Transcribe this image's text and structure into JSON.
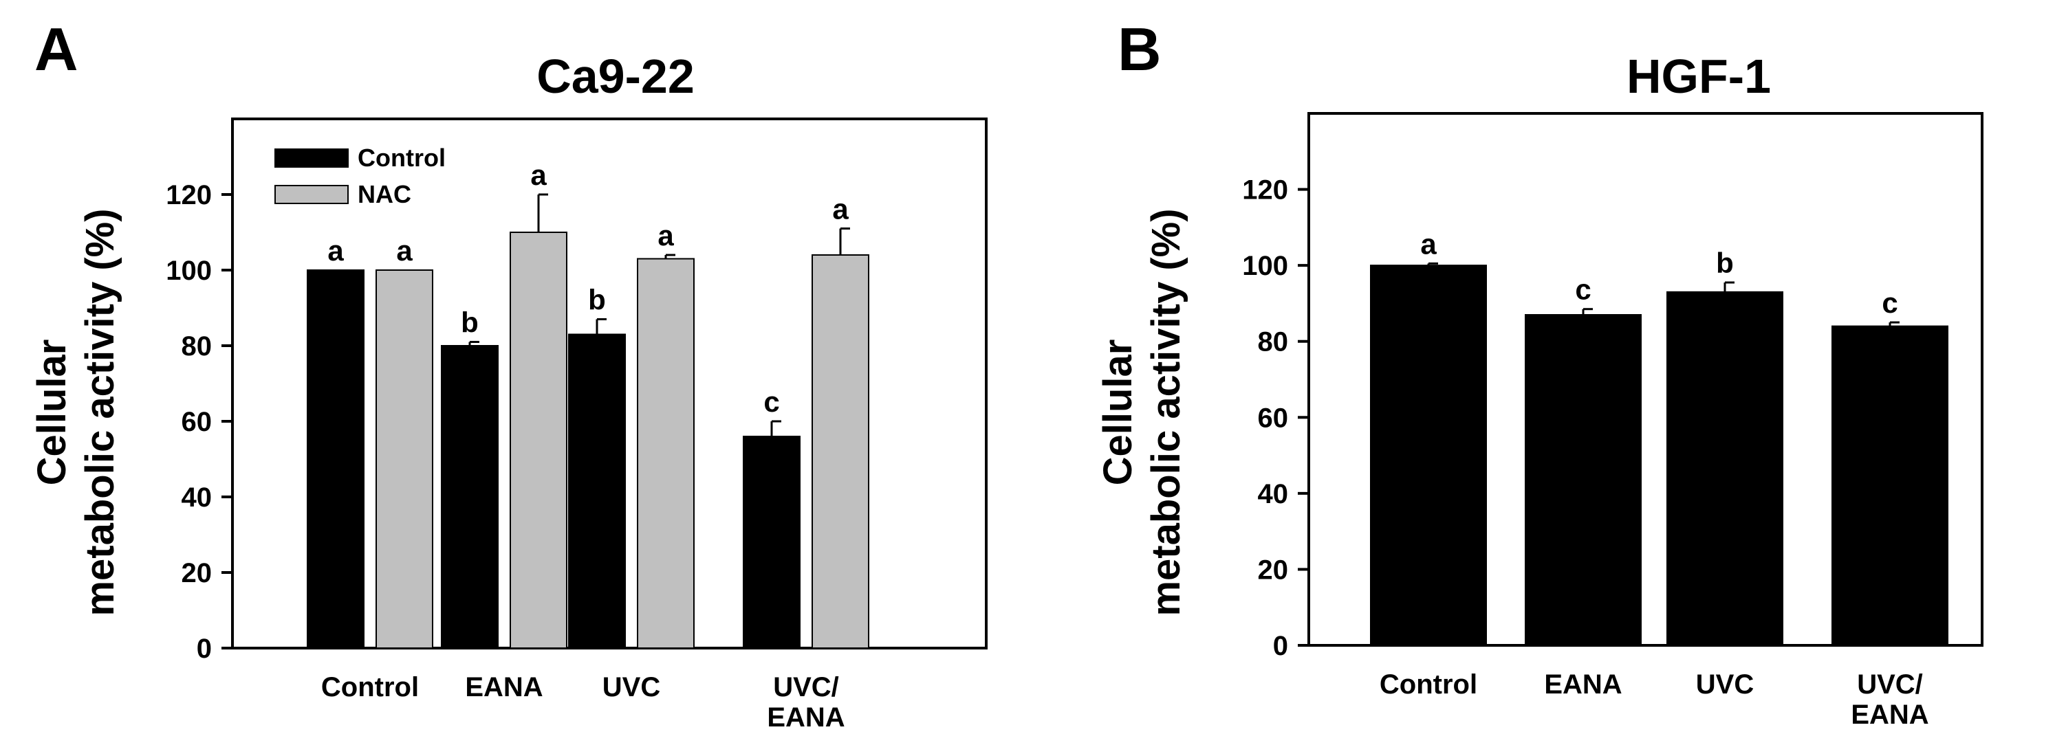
{
  "panel_letters": [
    "A",
    "B"
  ],
  "colors": {
    "control": "#000000",
    "nac": "#c0c0c0",
    "axis": "#000000"
  },
  "chart_data": [
    {
      "type": "bar",
      "panel": "A",
      "title": "Ca9-22",
      "ylabel_lines": [
        "Cellular",
        "metabolic activity (%)"
      ],
      "xlabel": "",
      "ylim": [
        0,
        140
      ],
      "yticks": [
        0,
        20,
        40,
        60,
        80,
        100,
        120
      ],
      "categories": [
        [
          "Control"
        ],
        [
          "EANA"
        ],
        [
          "UVC"
        ],
        [
          "UVC/",
          "EANA"
        ]
      ],
      "legend": {
        "placement": "top-left",
        "entries": [
          "Control",
          "NAC"
        ]
      },
      "series": [
        {
          "name": "Control",
          "color": "#000000",
          "values": [
            100,
            80,
            83,
            56
          ],
          "errors": [
            0,
            1,
            4,
            4
          ],
          "letters": [
            "a",
            "b",
            "b",
            "c"
          ]
        },
        {
          "name": "NAC",
          "color": "#c0c0c0",
          "values": [
            100,
            110,
            103,
            104
          ],
          "errors": [
            0,
            10,
            1,
            7
          ],
          "letters": [
            "a",
            "a",
            "a",
            "a"
          ]
        }
      ]
    },
    {
      "type": "bar",
      "panel": "B",
      "title": "HGF-1",
      "ylabel_lines": [
        "Cellular",
        "metabolic activity (%)"
      ],
      "xlabel": "",
      "ylim": [
        0,
        140
      ],
      "yticks": [
        0,
        20,
        40,
        60,
        80,
        100,
        120
      ],
      "categories": [
        [
          "Control"
        ],
        [
          "EANA"
        ],
        [
          "UVC"
        ],
        [
          "UVC/",
          "EANA"
        ]
      ],
      "series": [
        {
          "name": "Control",
          "color": "#000000",
          "values": [
            100,
            87,
            93,
            84
          ],
          "errors": [
            0.5,
            1.5,
            2.5,
            1
          ],
          "letters": [
            "a",
            "c",
            "b",
            "c"
          ]
        }
      ]
    }
  ]
}
